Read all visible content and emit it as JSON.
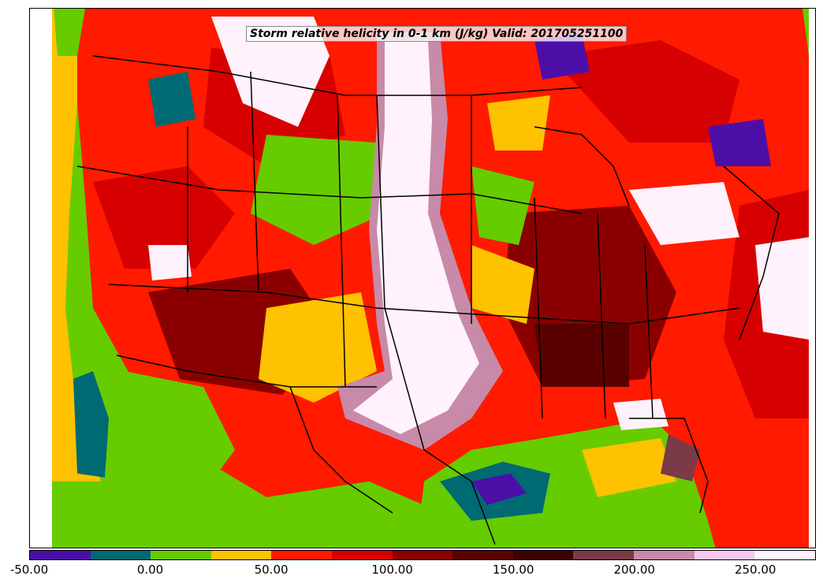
{
  "title": "Storm relative helicity in 0-1 km (J/kg) Valid: 201705251100",
  "colorbar": {
    "colors": [
      "#4b0fa8",
      "#006a72",
      "#66cc00",
      "#ffc200",
      "#ff1a00",
      "#d60000",
      "#8a0000",
      "#5a0000",
      "#3c0000",
      "#7a3a48",
      "#c78aa8",
      "#f5c8f0",
      "#fff2fc"
    ],
    "ticks": [
      "-50.00",
      "0.00",
      "50.00",
      "100.00",
      "150.00",
      "200.00",
      "250.00"
    ]
  },
  "legend_values": [
    -50,
    0,
    50,
    100,
    150,
    200,
    250
  ],
  "palette": {
    "ocean": "#66cc00",
    "gulf_core": "#006a72",
    "gulf_center": "#4b0fa8",
    "high": "#fff2fc",
    "border": "#000000"
  }
}
